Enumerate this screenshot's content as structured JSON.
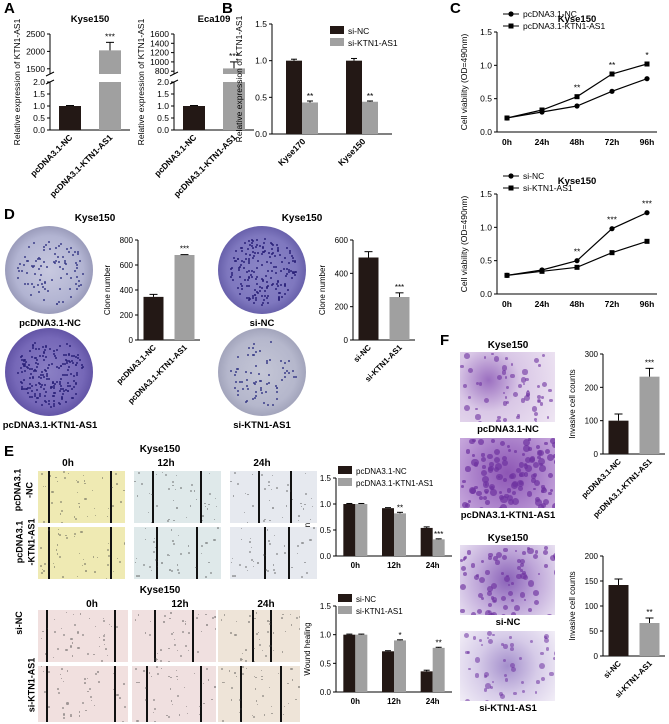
{
  "panels": {
    "A": "A",
    "B": "B",
    "C": "C",
    "D": "D",
    "E": "E",
    "F": "F"
  },
  "panelA": {
    "charts": [
      {
        "title": "Kyse150",
        "ylabel": "Relative expression of KTN1-AS1",
        "categories": [
          "pcDNA3.1-NC",
          "pcDNA3.1-KTN1-AS1"
        ],
        "values": [
          1.0,
          2030
        ],
        "errors": [
          0.02,
          230
        ],
        "sig": [
          "",
          "***"
        ],
        "lower_ticks": [
          "0.0",
          "0.5",
          "1.0",
          "1.5",
          "2.0"
        ],
        "upper_ticks": [
          "1500",
          "2000",
          "2500"
        ]
      },
      {
        "title": "Eca109",
        "ylabel": "Relative expression of KTN1-AS1",
        "categories": [
          "pcDNA3.1-NC",
          "pcDNA3.1-KTN1-AS1"
        ],
        "values": [
          1.0,
          860
        ],
        "errors": [
          0.02,
          140
        ],
        "sig": [
          "",
          "***"
        ],
        "lower_ticks": [
          "0.0",
          "0.5",
          "1.0",
          "1.5",
          "2.0"
        ],
        "upper_ticks": [
          "800",
          "1000",
          "1200",
          "1400",
          "1600"
        ]
      }
    ]
  },
  "chart_data": [
    {
      "type": "bar",
      "panel": "B",
      "title": "",
      "ylabel": "Relative expression of KTN1-AS1",
      "categories": [
        "Kyse170",
        "Kyse150"
      ],
      "series": [
        {
          "name": "si-NC",
          "values": [
            1.0,
            1.0
          ],
          "errors": [
            0.02,
            0.03
          ]
        },
        {
          "name": "si-KTN1-AS1",
          "values": [
            0.43,
            0.44
          ],
          "errors": [
            0.02,
            0.01
          ]
        }
      ],
      "sig": [
        "**",
        "**"
      ],
      "ylim": [
        0,
        1.5
      ],
      "yticks": [
        "0.0",
        "0.5",
        "1.0",
        "1.5"
      ]
    },
    {
      "type": "line",
      "panel": "C1",
      "title": "Kyse150",
      "ylabel": "Cell viability (OD=490nm)",
      "x": [
        "0h",
        "24h",
        "48h",
        "72h",
        "96h"
      ],
      "series": [
        {
          "name": "pcDNA3.1-NC",
          "values": [
            0.21,
            0.3,
            0.39,
            0.61,
            0.8
          ]
        },
        {
          "name": "pcDNA3.1-KTN1-AS1",
          "values": [
            0.21,
            0.33,
            0.53,
            0.87,
            1.02
          ]
        }
      ],
      "sig": [
        "",
        "",
        "**",
        "**",
        "*"
      ],
      "ylim": [
        0,
        1.5
      ],
      "yticks": [
        "0.0",
        "0.5",
        "1.0",
        "1.5"
      ]
    },
    {
      "type": "line",
      "panel": "C2",
      "title": "Kyse150",
      "ylabel": "Cell viability (OD=490nm)",
      "x": [
        "0h",
        "24h",
        "48h",
        "72h",
        "96h"
      ],
      "series": [
        {
          "name": "si-NC",
          "values": [
            0.28,
            0.36,
            0.5,
            0.98,
            1.22
          ]
        },
        {
          "name": "si-KTN1-AS1",
          "values": [
            0.28,
            0.34,
            0.4,
            0.62,
            0.79
          ]
        }
      ],
      "sig": [
        "",
        "",
        "**",
        "***",
        "***"
      ],
      "ylim": [
        0,
        1.5
      ],
      "yticks": [
        "0.0",
        "0.5",
        "1.0",
        "1.5"
      ]
    },
    {
      "type": "bar",
      "panel": "D1",
      "title": "",
      "ylabel": "Clone number",
      "categories": [
        "pcDNA3.1-NC",
        "pcDNA3.1-KTN1-AS1"
      ],
      "values": [
        345,
        680
      ],
      "errors": [
        20,
        3
      ],
      "sig": [
        "",
        "***"
      ],
      "ylim": [
        0,
        800
      ],
      "yticks": [
        "0",
        "200",
        "400",
        "600",
        "800"
      ]
    },
    {
      "type": "bar",
      "panel": "D2",
      "title": "",
      "ylabel": "Clone number",
      "categories": [
        "si-NC",
        "si-KTN1-AS1"
      ],
      "values": [
        495,
        258
      ],
      "errors": [
        35,
        25
      ],
      "sig": [
        "",
        "***"
      ],
      "ylim": [
        0,
        600
      ],
      "yticks": [
        "0",
        "200",
        "400",
        "600"
      ]
    },
    {
      "type": "bar",
      "panel": "E1",
      "title": "",
      "ylabel": "Wound healing",
      "categories": [
        "0h",
        "12h",
        "24h"
      ],
      "series": [
        {
          "name": "pcDNA3.1-NC",
          "values": [
            1.0,
            0.92,
            0.54
          ],
          "errors": [
            0.01,
            0.01,
            0.02
          ]
        },
        {
          "name": "pcDNA3.1-KTN1-AS1",
          "values": [
            1.0,
            0.82,
            0.32
          ],
          "errors": [
            0.01,
            0.02,
            0.01
          ]
        }
      ],
      "sig": [
        "",
        "**",
        "***"
      ],
      "ylim": [
        0,
        1.5
      ],
      "yticks": [
        "0.0",
        "0.5",
        "1.0",
        "1.5"
      ]
    },
    {
      "type": "bar",
      "panel": "E2",
      "title": "",
      "ylabel": "Wound healing",
      "categories": [
        "0h",
        "12h",
        "24h"
      ],
      "series": [
        {
          "name": "si-NC",
          "values": [
            1.0,
            0.71,
            0.36
          ],
          "errors": [
            0.01,
            0.01,
            0.02
          ]
        },
        {
          "name": "si-KTN1-AS1",
          "values": [
            1.0,
            0.9,
            0.77
          ],
          "errors": [
            0.01,
            0.01,
            0.01
          ]
        }
      ],
      "sig": [
        "",
        "*",
        "**"
      ],
      "ylim": [
        0,
        1.5
      ],
      "yticks": [
        "0.0",
        "0.5",
        "1.0",
        "1.5"
      ]
    },
    {
      "type": "bar",
      "panel": "F1",
      "title": "",
      "ylabel": "Invasive cell counts",
      "categories": [
        "pcDNA3.1-NC",
        "pcDNA3.1-KTN1-AS1"
      ],
      "values": [
        100,
        232
      ],
      "errors": [
        20,
        25
      ],
      "sig": [
        "",
        "***"
      ],
      "ylim": [
        0,
        300
      ],
      "yticks": [
        "0",
        "100",
        "200",
        "300"
      ]
    },
    {
      "type": "bar",
      "panel": "F2",
      "title": "",
      "ylabel": "Invasive cell counts",
      "categories": [
        "si-NC",
        "si-KTN1-AS1"
      ],
      "values": [
        142,
        66
      ],
      "errors": [
        12,
        10
      ],
      "sig": [
        "",
        "**"
      ],
      "ylim": [
        0,
        200
      ],
      "yticks": [
        "0",
        "50",
        "100",
        "150",
        "200"
      ]
    }
  ],
  "panelD": {
    "title": "Kyse150",
    "dish_labels": [
      "pcDNA3.1-NC",
      "pcDNA3.1-KTN1-AS1",
      "si-NC",
      "si-KTN1-AS1"
    ]
  },
  "panelE": {
    "title": "Kyse150",
    "times": [
      "0h",
      "12h",
      "24h"
    ],
    "rows_top": [
      "pcDNA3.1\n-NC",
      "pcDNA3.1\n-KTN1-AS1"
    ],
    "rows_bottom": [
      "si-NC",
      "si-KTN1-AS1"
    ]
  },
  "panelF": {
    "title": "Kyse150",
    "labels": [
      "pcDNA3.1-NC",
      "pcDNA3.1-KTN1-AS1",
      "si-NC",
      "si-KTN1-AS1"
    ]
  },
  "colors": {
    "black_bar": "#231815",
    "grey_bar": "#a0a0a0",
    "purple": "#6b3fa0",
    "wound_top": "#f3efb6",
    "wound_top2": "#e3eeef",
    "wound_bot": "#f4e2e2"
  }
}
